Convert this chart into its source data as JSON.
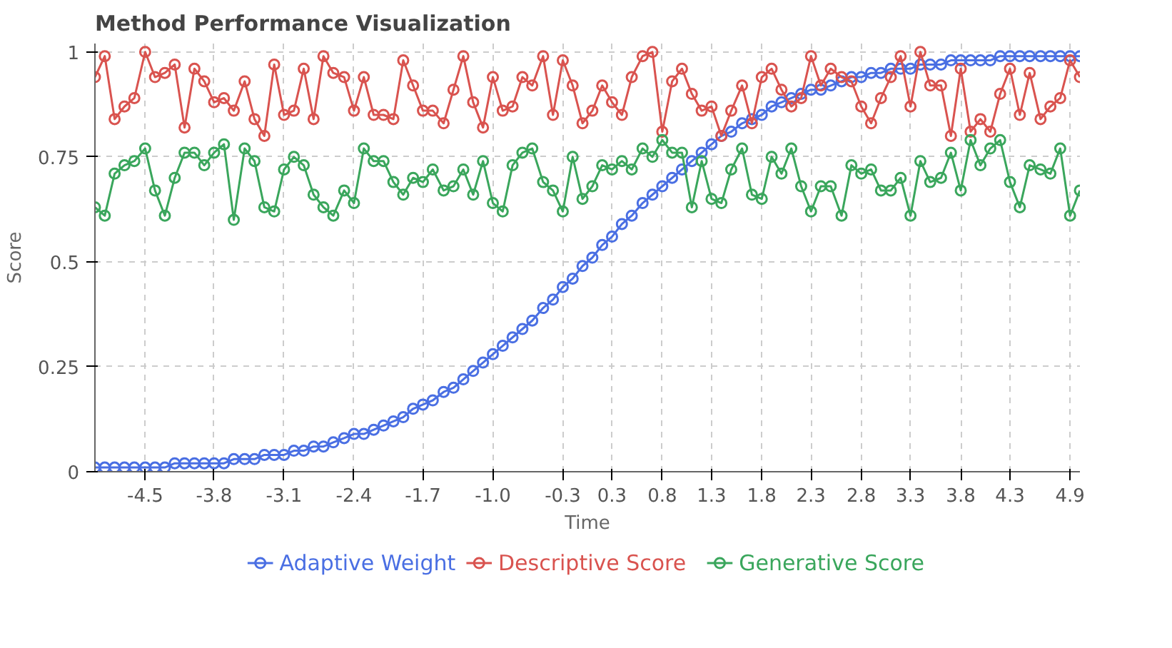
{
  "chart_data": {
    "type": "line",
    "title": "Method Performance Visualization",
    "xlabel": "Time",
    "ylabel": "Score",
    "x": [
      -5.0,
      -4.9,
      -4.8,
      -4.7,
      -4.6,
      -4.49,
      -4.39,
      -4.29,
      -4.19,
      -4.09,
      -3.99,
      -3.89,
      -3.79,
      -3.69,
      -3.59,
      -3.48,
      -3.38,
      -3.28,
      -3.18,
      -3.08,
      -2.98,
      -2.88,
      -2.78,
      -2.68,
      -2.58,
      -2.47,
      -2.37,
      -2.27,
      -2.17,
      -2.07,
      -1.97,
      -1.87,
      -1.77,
      -1.67,
      -1.57,
      -1.46,
      -1.36,
      -1.26,
      -1.16,
      -1.06,
      -0.96,
      -0.86,
      -0.76,
      -0.66,
      -0.56,
      -0.45,
      -0.35,
      -0.25,
      -0.15,
      -0.05,
      0.05,
      0.15,
      0.25,
      0.35,
      0.45,
      0.56,
      0.66,
      0.76,
      0.86,
      0.96,
      1.06,
      1.16,
      1.26,
      1.36,
      1.46,
      1.57,
      1.67,
      1.77,
      1.87,
      1.97,
      2.07,
      2.17,
      2.27,
      2.37,
      2.47,
      2.58,
      2.68,
      2.78,
      2.88,
      2.98,
      3.08,
      3.18,
      3.28,
      3.38,
      3.48,
      3.59,
      3.69,
      3.79,
      3.89,
      3.99,
      4.09,
      4.19,
      4.29,
      4.39,
      4.49,
      4.6,
      4.7,
      4.8,
      4.9,
      5.0
    ],
    "series": [
      {
        "name": "Adaptive Weight",
        "color": "#4a6fe3",
        "values": [
          0.01,
          0.01,
          0.01,
          0.01,
          0.01,
          0.01,
          0.01,
          0.01,
          0.02,
          0.02,
          0.02,
          0.02,
          0.02,
          0.02,
          0.03,
          0.03,
          0.03,
          0.04,
          0.04,
          0.04,
          0.05,
          0.05,
          0.06,
          0.06,
          0.07,
          0.08,
          0.09,
          0.09,
          0.1,
          0.11,
          0.12,
          0.13,
          0.15,
          0.16,
          0.17,
          0.19,
          0.2,
          0.22,
          0.24,
          0.26,
          0.28,
          0.3,
          0.32,
          0.34,
          0.36,
          0.39,
          0.41,
          0.44,
          0.46,
          0.49,
          0.51,
          0.54,
          0.56,
          0.59,
          0.61,
          0.64,
          0.66,
          0.68,
          0.7,
          0.72,
          0.74,
          0.76,
          0.78,
          0.8,
          0.81,
          0.83,
          0.84,
          0.85,
          0.87,
          0.88,
          0.89,
          0.9,
          0.91,
          0.91,
          0.92,
          0.93,
          0.94,
          0.94,
          0.95,
          0.95,
          0.96,
          0.96,
          0.96,
          0.97,
          0.97,
          0.97,
          0.98,
          0.98,
          0.98,
          0.98,
          0.98,
          0.99,
          0.99,
          0.99,
          0.99,
          0.99,
          0.99,
          0.99,
          0.99,
          0.99
        ]
      },
      {
        "name": "Descriptive Score",
        "color": "#d9534f",
        "values": [
          0.94,
          0.99,
          0.84,
          0.87,
          0.89,
          1.0,
          0.94,
          0.95,
          0.97,
          0.82,
          0.96,
          0.93,
          0.88,
          0.89,
          0.86,
          0.93,
          0.84,
          0.8,
          0.97,
          0.85,
          0.86,
          0.96,
          0.84,
          0.99,
          0.95,
          0.94,
          0.86,
          0.94,
          0.85,
          0.85,
          0.84,
          0.98,
          0.92,
          0.86,
          0.86,
          0.83,
          0.91,
          0.99,
          0.88,
          0.82,
          0.94,
          0.86,
          0.87,
          0.94,
          0.92,
          0.99,
          0.85,
          0.98,
          0.92,
          0.83,
          0.86,
          0.92,
          0.88,
          0.85,
          0.94,
          0.99,
          1.0,
          0.81,
          0.93,
          0.96,
          0.9,
          0.86,
          0.87,
          0.8,
          0.86,
          0.92,
          0.83,
          0.94,
          0.96,
          0.91,
          0.87,
          0.89,
          0.99,
          0.92,
          0.96,
          0.94,
          0.93,
          0.87,
          0.83,
          0.89,
          0.94,
          0.99,
          0.87,
          1.0,
          0.92,
          0.92,
          0.8,
          0.96,
          0.81,
          0.84,
          0.81,
          0.9,
          0.96,
          0.85,
          0.95,
          0.84,
          0.87,
          0.89,
          0.98,
          0.94
        ]
      },
      {
        "name": "Generative Score",
        "color": "#3aa65c",
        "values": [
          0.63,
          0.61,
          0.71,
          0.73,
          0.74,
          0.77,
          0.67,
          0.61,
          0.7,
          0.76,
          0.76,
          0.73,
          0.76,
          0.78,
          0.6,
          0.77,
          0.74,
          0.63,
          0.62,
          0.72,
          0.75,
          0.73,
          0.66,
          0.63,
          0.61,
          0.67,
          0.64,
          0.77,
          0.74,
          0.74,
          0.69,
          0.66,
          0.7,
          0.69,
          0.72,
          0.67,
          0.68,
          0.72,
          0.66,
          0.74,
          0.64,
          0.62,
          0.73,
          0.76,
          0.77,
          0.69,
          0.67,
          0.62,
          0.75,
          0.65,
          0.68,
          0.73,
          0.72,
          0.74,
          0.72,
          0.77,
          0.75,
          0.79,
          0.76,
          0.76,
          0.63,
          0.74,
          0.65,
          0.64,
          0.72,
          0.77,
          0.66,
          0.65,
          0.75,
          0.71,
          0.77,
          0.68,
          0.62,
          0.68,
          0.68,
          0.61,
          0.73,
          0.71,
          0.72,
          0.67,
          0.67,
          0.7,
          0.61,
          0.74,
          0.69,
          0.7,
          0.76,
          0.67,
          0.79,
          0.73,
          0.77,
          0.79,
          0.69,
          0.63,
          0.73,
          0.72,
          0.71,
          0.77,
          0.61,
          0.67
        ]
      }
    ],
    "xlim": [
      -5.0,
      5.0
    ],
    "ylim": [
      0,
      1.02
    ],
    "xticks": [
      {
        "value": -4.49,
        "label": "-4.5"
      },
      {
        "value": -3.79,
        "label": "-3.8"
      },
      {
        "value": -3.08,
        "label": "-3.1"
      },
      {
        "value": -2.37,
        "label": "-2.4"
      },
      {
        "value": -1.67,
        "label": "-1.7"
      },
      {
        "value": -0.96,
        "label": "-1.0"
      },
      {
        "value": -0.25,
        "label": "-0.3"
      },
      {
        "value": 0.25,
        "label": "0.3"
      },
      {
        "value": 0.76,
        "label": "0.8"
      },
      {
        "value": 1.26,
        "label": "1.3"
      },
      {
        "value": 1.77,
        "label": "1.8"
      },
      {
        "value": 2.27,
        "label": "2.3"
      },
      {
        "value": 2.78,
        "label": "2.8"
      },
      {
        "value": 3.28,
        "label": "3.3"
      },
      {
        "value": 3.79,
        "label": "3.8"
      },
      {
        "value": 4.29,
        "label": "4.3"
      },
      4.9
    ],
    "yticks": [
      0,
      0.25,
      0.5,
      0.75,
      1
    ],
    "grid": true,
    "legend": "bottom",
    "marker": "circle",
    "line_style": "solid"
  }
}
